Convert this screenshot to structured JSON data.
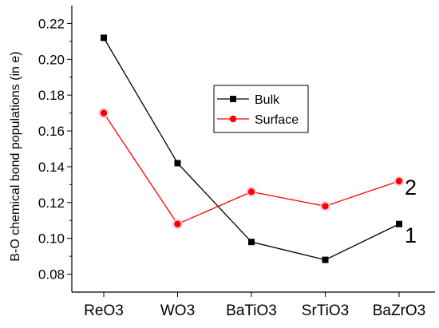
{
  "chart_data": {
    "type": "line",
    "categories": [
      "ReO3",
      "WO3",
      "BaTiO3",
      "SrTiO3",
      "BaZrO3"
    ],
    "series": [
      {
        "name": "Bulk",
        "values": [
          0.212,
          0.142,
          0.098,
          0.088,
          0.108
        ],
        "color": "#000000",
        "marker": "square"
      },
      {
        "name": "Surface",
        "values": [
          0.17,
          0.108,
          0.126,
          0.118,
          0.132
        ],
        "color": "#ff0000",
        "marker": "circle"
      }
    ],
    "xlabel": "",
    "ylabel": "B-O chemical bond populations (in e)",
    "ylim": [
      0.07,
      0.23
    ],
    "yticks": [
      "0.08",
      "0.10",
      "0.12",
      "0.14",
      "0.16",
      "0.18",
      "0.20",
      "0.22"
    ],
    "legend_position": "center",
    "grid": false,
    "annotations": [
      "2",
      "1"
    ]
  }
}
